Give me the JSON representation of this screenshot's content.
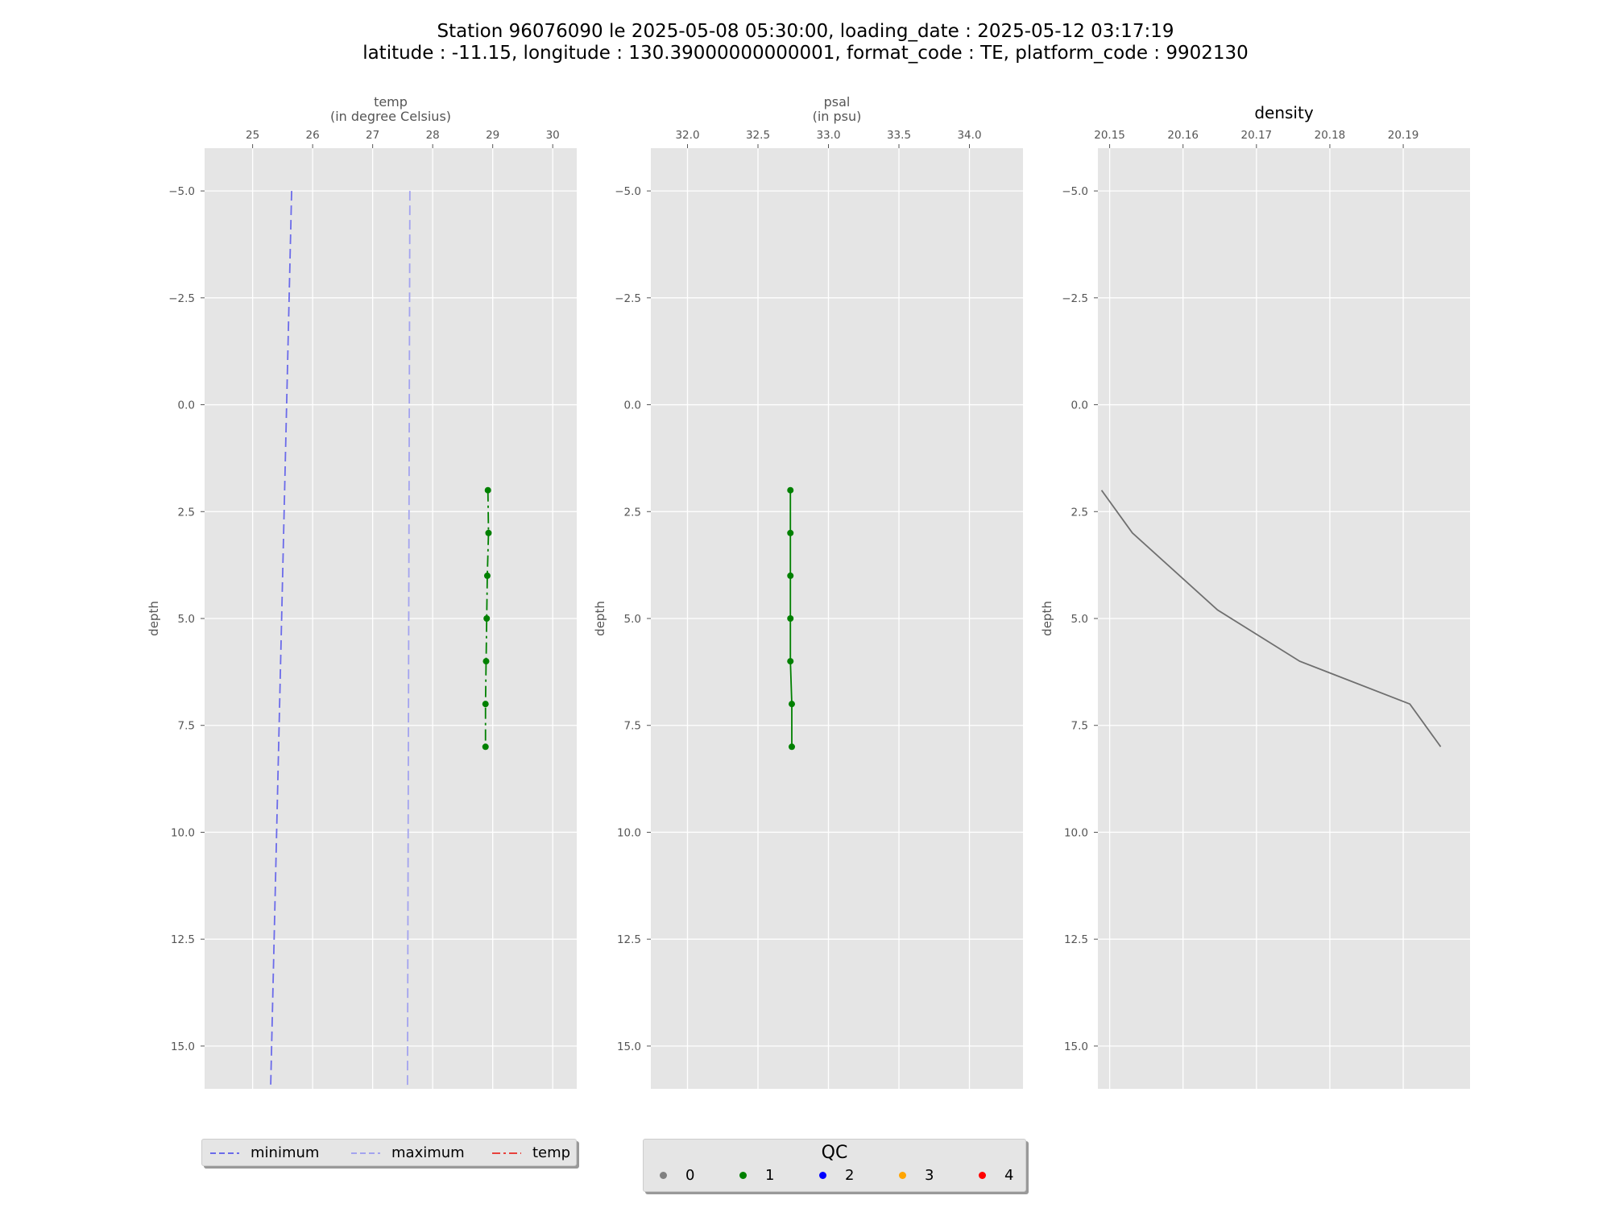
{
  "title_line1": "Station 96076090 le 2025-05-08 05:30:00, loading_date : 2025-05-12 03:17:19",
  "title_line2": "latitude : -11.15, longitude : 130.39000000000001, format_code : TE, platform_code : 9902130",
  "chart_data": [
    {
      "type": "line",
      "panel": "temp",
      "xlabel": "temp\n(in degree Celsius)",
      "ylabel": "depth",
      "xlim": [
        24.2,
        30.4
      ],
      "ylim": [
        16,
        -6
      ],
      "xticks": [
        25,
        26,
        27,
        28,
        29,
        30
      ],
      "yticks": [
        -5.0,
        -2.5,
        0.0,
        2.5,
        5.0,
        7.5,
        10.0,
        12.5,
        15.0
      ],
      "grid": true,
      "series": [
        {
          "name": "minimum",
          "color": "#6b6bea",
          "style": "dashed",
          "x": [
            25.65,
            25.3
          ],
          "y": [
            -5,
            16
          ]
        },
        {
          "name": "maximum",
          "color": "#a3a3ef",
          "style": "dashed",
          "x": [
            27.62,
            27.58
          ],
          "y": [
            -5,
            16
          ]
        },
        {
          "name": "temp",
          "color": "#008000",
          "style": "dashdot",
          "markers_qc": 1,
          "x": [
            28.92,
            28.93,
            28.91,
            28.9,
            28.89,
            28.88,
            28.88
          ],
          "y": [
            2,
            3,
            4,
            5,
            6,
            7,
            8
          ]
        }
      ]
    },
    {
      "type": "line",
      "panel": "psal",
      "xlabel": "psal\n(in psu)",
      "ylabel": "depth",
      "xlim": [
        31.74,
        34.38
      ],
      "ylim": [
        16,
        -6
      ],
      "xticks": [
        32.0,
        32.5,
        33.0,
        33.5,
        34.0
      ],
      "yticks": [
        -5.0,
        -2.5,
        0.0,
        2.5,
        5.0,
        7.5,
        10.0,
        12.5,
        15.0
      ],
      "grid": true,
      "series": [
        {
          "name": "psal",
          "color": "#008000",
          "style": "solid",
          "markers_qc": 1,
          "x": [
            32.73,
            32.73,
            32.73,
            32.73,
            32.73,
            32.74,
            32.74
          ],
          "y": [
            2,
            3,
            4,
            5,
            6,
            7,
            8
          ]
        }
      ]
    },
    {
      "type": "line",
      "panel": "density",
      "title": "density",
      "ylabel": "depth",
      "xlim": [
        20.1484,
        20.1991
      ],
      "ylim": [
        16,
        -6
      ],
      "xticks": [
        20.15,
        20.16,
        20.17,
        20.18,
        20.19
      ],
      "yticks": [
        -5.0,
        -2.5,
        0.0,
        2.5,
        5.0,
        7.5,
        10.0,
        12.5,
        15.0
      ],
      "grid": true,
      "series": [
        {
          "name": "density",
          "color": "#6f6f6f",
          "style": "solid",
          "x": [
            20.1489,
            20.1531,
            20.1647,
            20.1759,
            20.1909,
            20.1951
          ],
          "y": [
            2,
            3,
            4.8,
            6,
            7,
            8
          ]
        }
      ]
    }
  ],
  "legend_lines": {
    "items": [
      {
        "label": "minimum",
        "color": "#6b6bea",
        "style": "dashed"
      },
      {
        "label": "maximum",
        "color": "#a3a3ef",
        "style": "dashed"
      },
      {
        "label": "temp",
        "color": "#e8413c",
        "style": "dashdot"
      }
    ]
  },
  "legend_qc": {
    "title": "QC",
    "items": [
      {
        "label": "0",
        "color": "#808080"
      },
      {
        "label": "1",
        "color": "#008000"
      },
      {
        "label": "2",
        "color": "#0000ff"
      },
      {
        "label": "3",
        "color": "#ffa500"
      },
      {
        "label": "4",
        "color": "#ff0000"
      }
    ]
  }
}
